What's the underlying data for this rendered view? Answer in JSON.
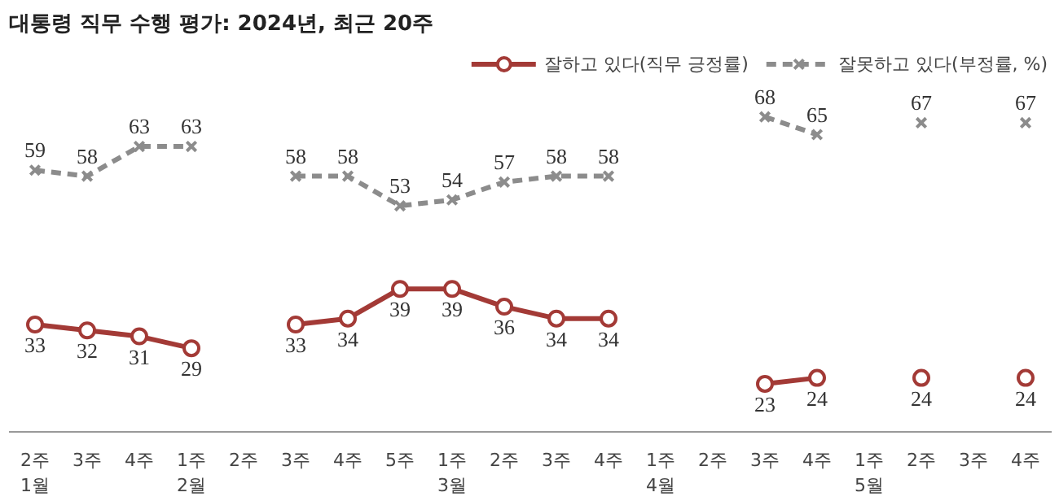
{
  "chart_data": {
    "type": "line",
    "title": "대통령 직무 수행 평가: 2024년, 최근 20주",
    "categories": [
      "2주\n1월",
      "3주",
      "4주",
      "1주\n2월",
      "2주",
      "3주",
      "4주",
      "5주",
      "1주\n3월",
      "2주",
      "3주",
      "4주",
      "1주\n4월",
      "2주",
      "3주",
      "4주",
      "1주\n5월",
      "2주",
      "3주",
      "4주"
    ],
    "tick_labels": "x",
    "grid": false,
    "legend": "top right",
    "data_labels": true,
    "series": [
      {
        "name": "잘하고 있다(직무 긍정률)",
        "color": "#a33a36",
        "marker": "circle",
        "line_style": "solid",
        "values": [
          33,
          32,
          31,
          29,
          null,
          33,
          34,
          39,
          39,
          36,
          34,
          34,
          null,
          null,
          23,
          24,
          null,
          24,
          null,
          24
        ]
      },
      {
        "name": "잘못하고 있다(부정률, %)",
        "color": "#8c8c8c",
        "marker": "cross",
        "line_style": "dashed",
        "values": [
          59,
          58,
          63,
          63,
          null,
          58,
          58,
          53,
          54,
          57,
          58,
          58,
          null,
          null,
          68,
          65,
          null,
          67,
          null,
          67
        ]
      }
    ]
  }
}
